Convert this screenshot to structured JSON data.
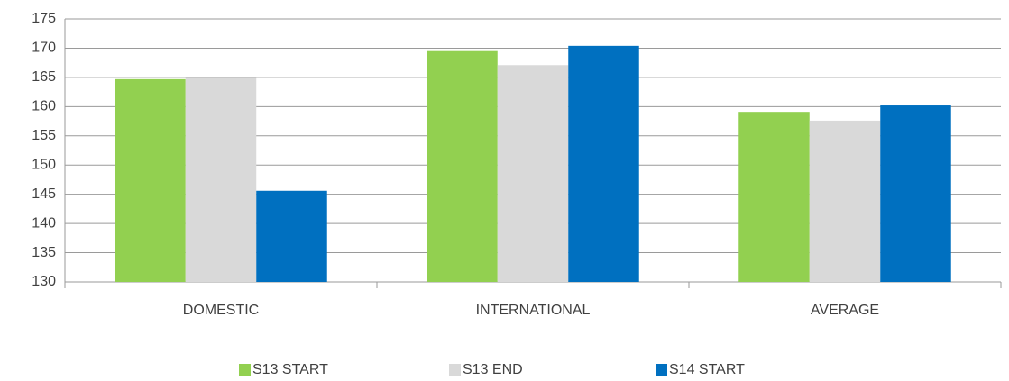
{
  "chart_data": {
    "type": "bar",
    "categories": [
      "DOMESTIC",
      "INTERNATIONAL",
      "AVERAGE"
    ],
    "series": [
      {
        "name": "S13 START",
        "color": "#92d050",
        "values": [
          164.7,
          169.5,
          159.1
        ]
      },
      {
        "name": "S13 END",
        "color": "#d9d9d9",
        "values": [
          164.9,
          167.1,
          157.6
        ]
      },
      {
        "name": "S14 START",
        "color": "#0070c0",
        "values": [
          145.6,
          170.4,
          160.2
        ]
      }
    ],
    "ylim": [
      130,
      175
    ],
    "yticks": [
      130,
      135,
      140,
      145,
      150,
      155,
      160,
      165,
      170,
      175
    ],
    "grid": true,
    "legend": "bottom"
  }
}
